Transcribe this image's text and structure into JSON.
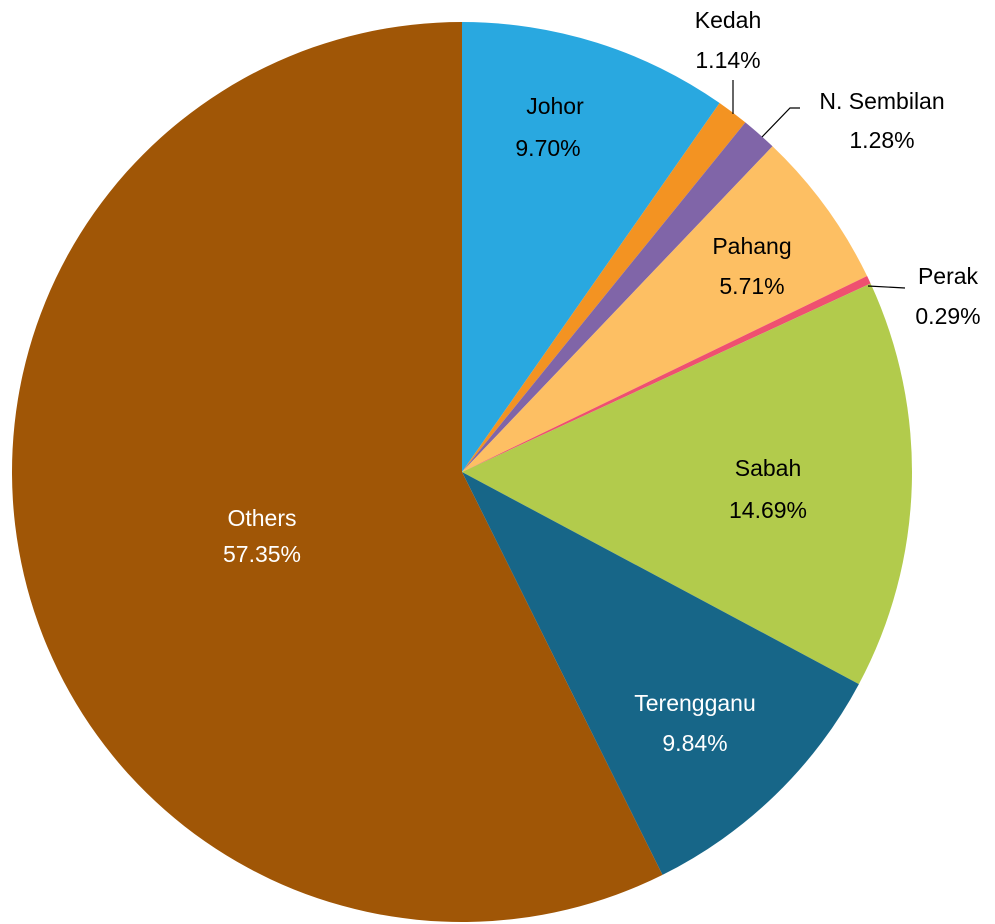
{
  "chart_data": {
    "type": "pie",
    "categories": [
      "Johor",
      "Kedah",
      "N. Sembilan",
      "Pahang",
      "Perak",
      "Sabah",
      "Terengganu",
      "Others"
    ],
    "values": [
      9.7,
      1.14,
      1.28,
      5.71,
      0.29,
      14.69,
      9.84,
      57.35
    ],
    "value_labels": [
      "9.70%",
      "1.14%",
      "1.28%",
      "5.71%",
      "0.29%",
      "14.69%",
      "9.84%",
      "57.35%"
    ],
    "colors": [
      "#29a8e0",
      "#f39322",
      "#8065a8",
      "#fdbf63",
      "#ef5070",
      "#b2cb4c",
      "#176688",
      "#a05606"
    ]
  }
}
